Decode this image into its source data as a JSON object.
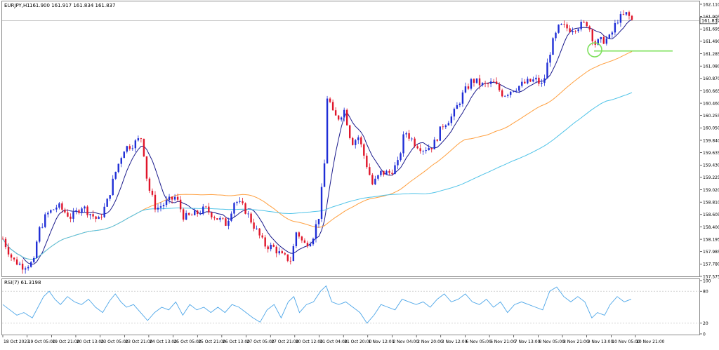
{
  "chart_data": {
    "type": "candlestick",
    "symbol_header": "EURJPY,H1",
    "ohlc_header": "161.900 161.917 161.834 161.837",
    "current_price": 161.837,
    "current_price_label": "161.837",
    "price_axis": {
      "ylim": [
        157.575,
        162.11
      ],
      "tick_labels": [
        "162.110",
        "161.905",
        "161.695",
        "161.490",
        "161.285",
        "161.080",
        "160.870",
        "160.665",
        "160.460",
        "160.255",
        "160.050",
        "159.840",
        "159.635",
        "159.430",
        "159.225",
        "159.020",
        "158.810",
        "158.605",
        "158.400",
        "158.195",
        "157.985",
        "157.780",
        "157.575"
      ]
    },
    "time_axis_labels": [
      "18 Oct 2023",
      "19 Oct 05:00",
      "19 Oct 21:00",
      "20 Oct 13:00",
      "23 Oct 05:00",
      "23 Oct 21:00",
      "24 Oct 13:00",
      "25 Oct 05:00",
      "25 Oct 21:00",
      "26 Oct 13:00",
      "27 Oct 05:00",
      "27 Oct 21:00",
      "30 Oct 12:00",
      "31 Oct 04:00",
      "31 Oct 20:00",
      "1 Nov 12:00",
      "2 Nov 04:00",
      "2 Nov 20:00",
      "3 Nov 12:00",
      "6 Nov 05:00",
      "6 Nov 21:00",
      "7 Nov 13:00",
      "8 Nov 05:00",
      "8 Nov 21:00",
      "9 Nov 13:00",
      "10 Nov 05:00",
      "10 Nov 21:00"
    ],
    "price_path": [
      [
        0,
        158.2
      ],
      [
        14,
        157.85
      ],
      [
        28,
        157.75
      ],
      [
        44,
        157.8
      ],
      [
        50,
        158.3
      ],
      [
        62,
        158.6
      ],
      [
        78,
        158.75
      ],
      [
        98,
        158.55
      ],
      [
        112,
        158.75
      ],
      [
        136,
        158.5
      ],
      [
        148,
        158.8
      ],
      [
        160,
        159.3
      ],
      [
        172,
        159.7
      ],
      [
        188,
        159.8
      ],
      [
        198,
        159.9
      ],
      [
        206,
        159.1
      ],
      [
        218,
        158.7
      ],
      [
        232,
        158.8
      ],
      [
        246,
        158.9
      ],
      [
        258,
        158.55
      ],
      [
        272,
        158.6
      ],
      [
        288,
        158.7
      ],
      [
        304,
        158.55
      ],
      [
        318,
        158.45
      ],
      [
        330,
        158.85
      ],
      [
        344,
        158.7
      ],
      [
        358,
        158.4
      ],
      [
        372,
        158.1
      ],
      [
        386,
        158.05
      ],
      [
        398,
        157.9
      ],
      [
        410,
        157.85
      ],
      [
        418,
        158.35
      ],
      [
        428,
        158.1
      ],
      [
        440,
        158.2
      ],
      [
        450,
        158.6
      ],
      [
        458,
        159.5
      ],
      [
        462,
        160.7
      ],
      [
        468,
        160.3
      ],
      [
        476,
        160.2
      ],
      [
        486,
        160.35
      ],
      [
        496,
        159.8
      ],
      [
        506,
        159.9
      ],
      [
        516,
        159.5
      ],
      [
        526,
        159.1
      ],
      [
        538,
        159.3
      ],
      [
        550,
        159.3
      ],
      [
        562,
        159.45
      ],
      [
        572,
        160.0
      ],
      [
        586,
        159.8
      ],
      [
        598,
        159.7
      ],
      [
        612,
        159.75
      ],
      [
        626,
        160.1
      ],
      [
        640,
        160.25
      ],
      [
        654,
        160.6
      ],
      [
        668,
        160.85
      ],
      [
        684,
        160.75
      ],
      [
        698,
        160.8
      ],
      [
        712,
        160.6
      ],
      [
        726,
        160.7
      ],
      [
        744,
        160.8
      ],
      [
        758,
        160.85
      ],
      [
        768,
        160.75
      ],
      [
        780,
        161.4
      ],
      [
        792,
        161.75
      ],
      [
        806,
        161.7
      ],
      [
        820,
        161.75
      ],
      [
        832,
        161.8
      ],
      [
        842,
        161.45
      ],
      [
        852,
        161.5
      ],
      [
        864,
        161.55
      ],
      [
        874,
        161.85
      ],
      [
        888,
        161.95
      ],
      [
        895,
        161.84
      ]
    ],
    "moving_averages": [
      {
        "color": "#1b1b8c"
      },
      {
        "color": "#ffa040"
      },
      {
        "color": "#4fc3e8"
      }
    ],
    "horizontal_level": {
      "price": 161.33,
      "color": "#7ce05a"
    },
    "highlight_circle_price": 161.35,
    "rsi_header": "RSI(7) 61.3198",
    "rsi": {
      "ylim": [
        0,
        100
      ],
      "tick_labels": [
        "100",
        "80",
        "20",
        "0"
      ],
      "levels": [
        80,
        20
      ],
      "color": "#4da6e8",
      "path": [
        [
          0,
          55
        ],
        [
          10,
          45
        ],
        [
          20,
          35
        ],
        [
          30,
          40
        ],
        [
          42,
          30
        ],
        [
          50,
          50
        ],
        [
          58,
          70
        ],
        [
          66,
          80
        ],
        [
          74,
          65
        ],
        [
          82,
          55
        ],
        [
          92,
          70
        ],
        [
          102,
          60
        ],
        [
          112,
          55
        ],
        [
          122,
          65
        ],
        [
          132,
          50
        ],
        [
          142,
          40
        ],
        [
          152,
          62
        ],
        [
          160,
          75
        ],
        [
          168,
          60
        ],
        [
          176,
          50
        ],
        [
          186,
          55
        ],
        [
          196,
          40
        ],
        [
          206,
          25
        ],
        [
          216,
          40
        ],
        [
          226,
          50
        ],
        [
          236,
          45
        ],
        [
          246,
          60
        ],
        [
          256,
          35
        ],
        [
          266,
          55
        ],
        [
          276,
          45
        ],
        [
          286,
          50
        ],
        [
          296,
          40
        ],
        [
          306,
          50
        ],
        [
          316,
          40
        ],
        [
          326,
          55
        ],
        [
          336,
          50
        ],
        [
          346,
          40
        ],
        [
          356,
          30
        ],
        [
          366,
          22
        ],
        [
          376,
          45
        ],
        [
          386,
          55
        ],
        [
          396,
          30
        ],
        [
          406,
          60
        ],
        [
          414,
          70
        ],
        [
          422,
          40
        ],
        [
          432,
          55
        ],
        [
          442,
          60
        ],
        [
          452,
          80
        ],
        [
          460,
          90
        ],
        [
          468,
          60
        ],
        [
          478,
          55
        ],
        [
          488,
          60
        ],
        [
          498,
          50
        ],
        [
          508,
          40
        ],
        [
          518,
          20
        ],
        [
          528,
          35
        ],
        [
          538,
          55
        ],
        [
          548,
          50
        ],
        [
          558,
          45
        ],
        [
          568,
          65
        ],
        [
          578,
          60
        ],
        [
          588,
          55
        ],
        [
          598,
          60
        ],
        [
          608,
          50
        ],
        [
          618,
          65
        ],
        [
          628,
          75
        ],
        [
          638,
          60
        ],
        [
          648,
          65
        ],
        [
          658,
          75
        ],
        [
          668,
          60
        ],
        [
          678,
          55
        ],
        [
          688,
          65
        ],
        [
          698,
          50
        ],
        [
          708,
          60
        ],
        [
          718,
          40
        ],
        [
          728,
          55
        ],
        [
          738,
          60
        ],
        [
          748,
          55
        ],
        [
          758,
          50
        ],
        [
          768,
          45
        ],
        [
          778,
          80
        ],
        [
          788,
          88
        ],
        [
          798,
          70
        ],
        [
          808,
          60
        ],
        [
          818,
          70
        ],
        [
          828,
          60
        ],
        [
          838,
          30
        ],
        [
          846,
          40
        ],
        [
          856,
          35
        ],
        [
          864,
          55
        ],
        [
          874,
          70
        ],
        [
          884,
          60
        ],
        [
          894,
          65
        ]
      ]
    }
  }
}
